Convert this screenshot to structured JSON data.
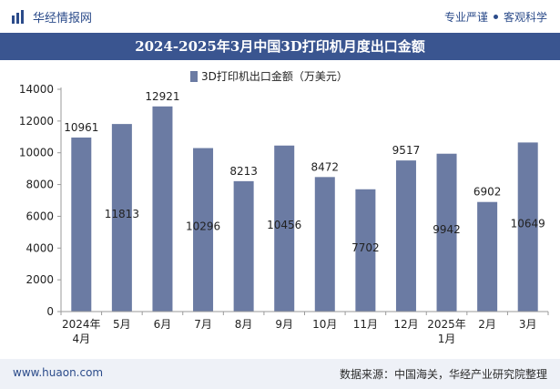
{
  "header": {
    "brand_name": "华经情报网",
    "tagline_left": "专业严谨",
    "tagline_right": "客观科学"
  },
  "title": "2024-2025年3月中国3D打印机月度出口金额",
  "footer": {
    "website": "www.huaon.com",
    "source": "数据来源：中国海关，华经产业研究院整理"
  },
  "colors": {
    "bar": "#6b7ba3",
    "title_bg": "#3a5590",
    "brand": "#2b4b8a"
  },
  "chart_data": {
    "type": "bar",
    "categories": [
      "2024年\n4月",
      "5月",
      "6月",
      "7月",
      "8月",
      "9月",
      "10月",
      "11月",
      "12月",
      "2025年\n1月",
      "2月",
      "3月"
    ],
    "series": [
      {
        "name": "3D打印机出口金额（万美元）",
        "values": [
          10961,
          11813,
          12921,
          10296,
          8213,
          10456,
          8472,
          7702,
          9517,
          9942,
          6902,
          10649
        ]
      }
    ],
    "ylim": [
      0,
      14000
    ],
    "yticks": [
      0,
      2000,
      4000,
      6000,
      8000,
      10000,
      12000,
      14000
    ],
    "xlabel": "",
    "ylabel": "",
    "legend_position": "top-center",
    "grid": false
  }
}
